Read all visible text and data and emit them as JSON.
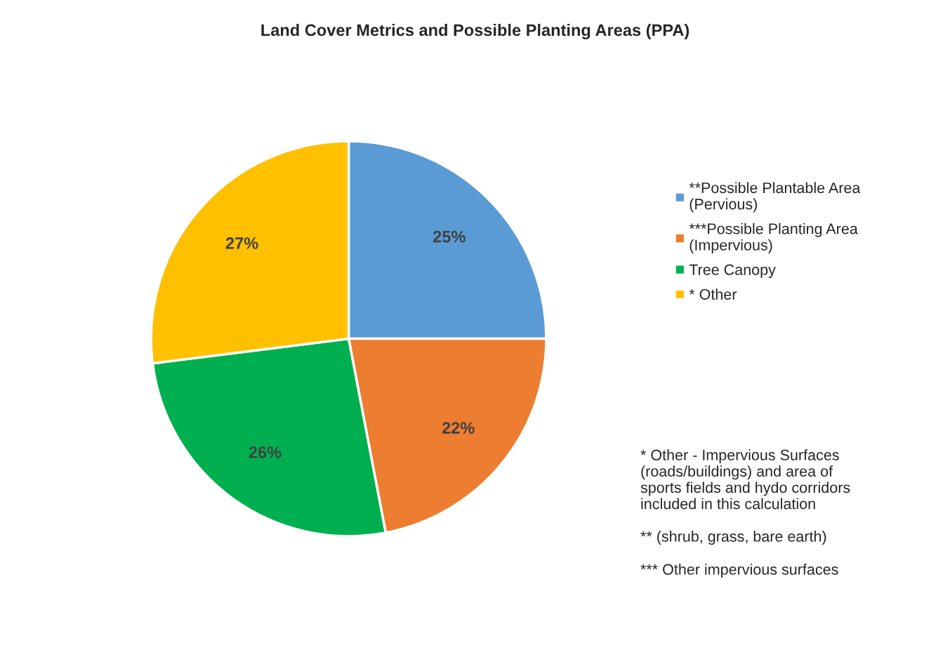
{
  "chart_data": {
    "type": "pie",
    "title": "Land Cover Metrics and Possible Planting Areas (PPA)",
    "categories": [
      "**Possible Plantable Area (Pervious)",
      "***Possible Planting Area (Impervious)",
      "Tree Canopy",
      "* Other"
    ],
    "values": [
      25,
      22,
      26,
      27
    ],
    "colors": [
      "#5b9bd5",
      "#ed7d31",
      "#00b050",
      "#ffc000"
    ],
    "value_labels": [
      "25%",
      "22%",
      "26%",
      "27%"
    ],
    "legend": "right",
    "annotations": [
      "* Other - Impervious Surfaces (roads/buildings) and area of sports fields and hydo corridors included in this calculation",
      "** (shrub, grass, bare earth)",
      "*** Other impervious surfaces"
    ]
  }
}
